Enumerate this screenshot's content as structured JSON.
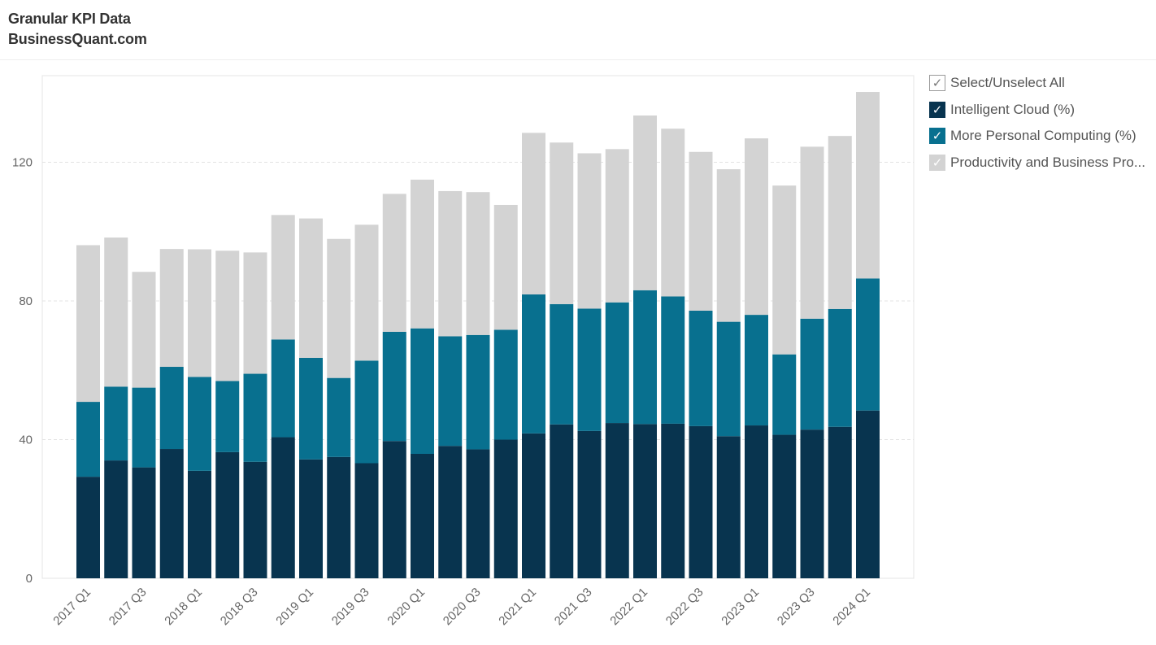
{
  "header": {
    "title": "Granular KPI Data",
    "subtitle": "BusinessQuant.com"
  },
  "legend": {
    "select_all_label": "Select/Unselect All",
    "check_glyph": "✓",
    "items": [
      {
        "label": "Intelligent Cloud (%)",
        "color": "#08344f",
        "checked": true
      },
      {
        "label": "More Personal Computing (%)",
        "color": "#08708f",
        "checked": true
      },
      {
        "label": "Productivity and Business Pro...",
        "color": "#d3d3d3",
        "checked": true
      }
    ]
  },
  "chart_data": {
    "type": "bar",
    "stacked": true,
    "categories": [
      "2017 Q1",
      "2017 Q2",
      "2017 Q3",
      "2017 Q4",
      "2018 Q1",
      "2018 Q2",
      "2018 Q3",
      "2018 Q4",
      "2019 Q1",
      "2019 Q2",
      "2019 Q3",
      "2019 Q4",
      "2020 Q1",
      "2020 Q2",
      "2020 Q3",
      "2020 Q4",
      "2021 Q1",
      "2021 Q2",
      "2021 Q3",
      "2021 Q4",
      "2022 Q1",
      "2022 Q2",
      "2022 Q3",
      "2022 Q4",
      "2023 Q1",
      "2023 Q2",
      "2023 Q3",
      "2023 Q4",
      "2024 Q1"
    ],
    "x_tick_labels": [
      "2017 Q1",
      "2017 Q3",
      "2018 Q1",
      "2018 Q3",
      "2019 Q1",
      "2019 Q3",
      "2020 Q1",
      "2020 Q3",
      "2021 Q1",
      "2021 Q3",
      "2022 Q1",
      "2022 Q3",
      "2023 Q1",
      "2023 Q3",
      "2024 Q1"
    ],
    "series": [
      {
        "name": "Intelligent Cloud (%)",
        "color": "#08344f",
        "values": [
          29.3,
          34.0,
          32.0,
          37.3,
          31.0,
          36.4,
          33.6,
          40.7,
          34.3,
          35.0,
          33.2,
          39.6,
          35.9,
          38.2,
          37.2,
          40.0,
          41.8,
          44.4,
          42.5,
          44.8,
          44.5,
          44.6,
          43.9,
          41.0,
          44.1,
          41.4,
          42.9,
          43.7,
          48.4
        ]
      },
      {
        "name": "More Personal Computing (%)",
        "color": "#08708f",
        "values": [
          21.6,
          21.3,
          23.0,
          23.7,
          27.1,
          20.5,
          25.4,
          28.2,
          29.3,
          22.8,
          29.6,
          31.5,
          36.2,
          31.6,
          33.0,
          31.7,
          40.1,
          34.7,
          35.3,
          34.8,
          38.6,
          36.7,
          33.3,
          33.0,
          31.9,
          23.2,
          32.0,
          34.0,
          38.1
        ]
      },
      {
        "name": "Productivity and Business Pro...",
        "color": "#d3d3d3",
        "values": [
          45.2,
          43.0,
          33.4,
          34.0,
          36.8,
          37.6,
          35.0,
          35.9,
          40.2,
          40.1,
          39.2,
          39.8,
          42.9,
          41.9,
          41.2,
          36.0,
          46.6,
          46.6,
          44.8,
          44.2,
          50.4,
          48.4,
          45.8,
          44.0,
          50.9,
          48.7,
          49.6,
          49.9,
          53.8
        ]
      }
    ],
    "y_ticks": [
      0,
      40,
      80,
      120
    ],
    "ylim": [
      0,
      145
    ],
    "xlabel": "",
    "ylabel": "",
    "grid": "horizontal dashed",
    "legend_position": "right"
  }
}
